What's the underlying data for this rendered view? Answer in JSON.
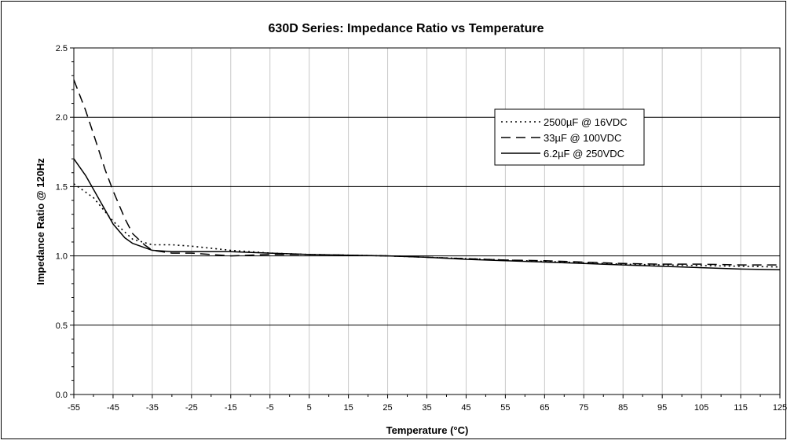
{
  "chart_data": {
    "type": "line",
    "title": "630D Series: Impedance Ratio vs Temperature",
    "xlabel": "Temperature (°C)",
    "ylabel": "Impedance Ratio @ 120Hz",
    "xlim": [
      -55,
      125
    ],
    "ylim": [
      0.0,
      2.5
    ],
    "x_ticks": [
      -55,
      -45,
      -35,
      -25,
      -15,
      -5,
      5,
      15,
      25,
      35,
      45,
      55,
      65,
      75,
      85,
      95,
      105,
      115,
      125
    ],
    "y_ticks": [
      0.0,
      0.5,
      1.0,
      1.5,
      2.0,
      2.5
    ],
    "y_tick_labels": [
      "0.0",
      "0.5",
      "1.0",
      "1.5",
      "2.0",
      "2.5"
    ],
    "grid": true,
    "legend_position": "top-right",
    "series": [
      {
        "name": "2500µF @ 16VDC",
        "style": "dotted",
        "color": "#000000",
        "x": [
          -55,
          -50,
          -45,
          -40,
          -35,
          -30,
          -25,
          -15,
          -5,
          5,
          15,
          25,
          35,
          45,
          55,
          65,
          75,
          85,
          95,
          105,
          115,
          125
        ],
        "y": [
          1.52,
          1.42,
          1.25,
          1.12,
          1.08,
          1.08,
          1.07,
          1.04,
          1.02,
          1.01,
          1.005,
          1.0,
          0.99,
          0.98,
          0.97,
          0.96,
          0.95,
          0.94,
          0.935,
          0.93,
          0.925,
          0.92
        ]
      },
      {
        "name": "33µF @ 100VDC",
        "style": "dashed",
        "color": "#000000",
        "x": [
          -55,
          -52,
          -50,
          -47,
          -45,
          -42,
          -40,
          -37,
          -35,
          -30,
          -25,
          -15,
          -5,
          5,
          15,
          25,
          35,
          45,
          55,
          65,
          75,
          85,
          95,
          105,
          115,
          125
        ],
        "y": [
          2.27,
          2.05,
          1.88,
          1.62,
          1.47,
          1.27,
          1.16,
          1.08,
          1.04,
          1.02,
          1.02,
          1.0,
          1.01,
          1.01,
          1.005,
          1.0,
          0.99,
          0.98,
          0.97,
          0.965,
          0.955,
          0.945,
          0.94,
          0.94,
          0.935,
          0.935
        ]
      },
      {
        "name": "6.2µF @ 250VDC",
        "style": "solid",
        "color": "#000000",
        "x": [
          -55,
          -52,
          -50,
          -47,
          -45,
          -42,
          -40,
          -37,
          -35,
          -30,
          -25,
          -15,
          -5,
          5,
          15,
          25,
          35,
          45,
          55,
          65,
          75,
          85,
          95,
          105,
          115,
          125
        ],
        "y": [
          1.7,
          1.58,
          1.48,
          1.33,
          1.23,
          1.13,
          1.09,
          1.06,
          1.04,
          1.03,
          1.03,
          1.03,
          1.02,
          1.01,
          1.005,
          1.0,
          0.99,
          0.975,
          0.965,
          0.955,
          0.945,
          0.935,
          0.925,
          0.915,
          0.905,
          0.9
        ]
      }
    ]
  }
}
